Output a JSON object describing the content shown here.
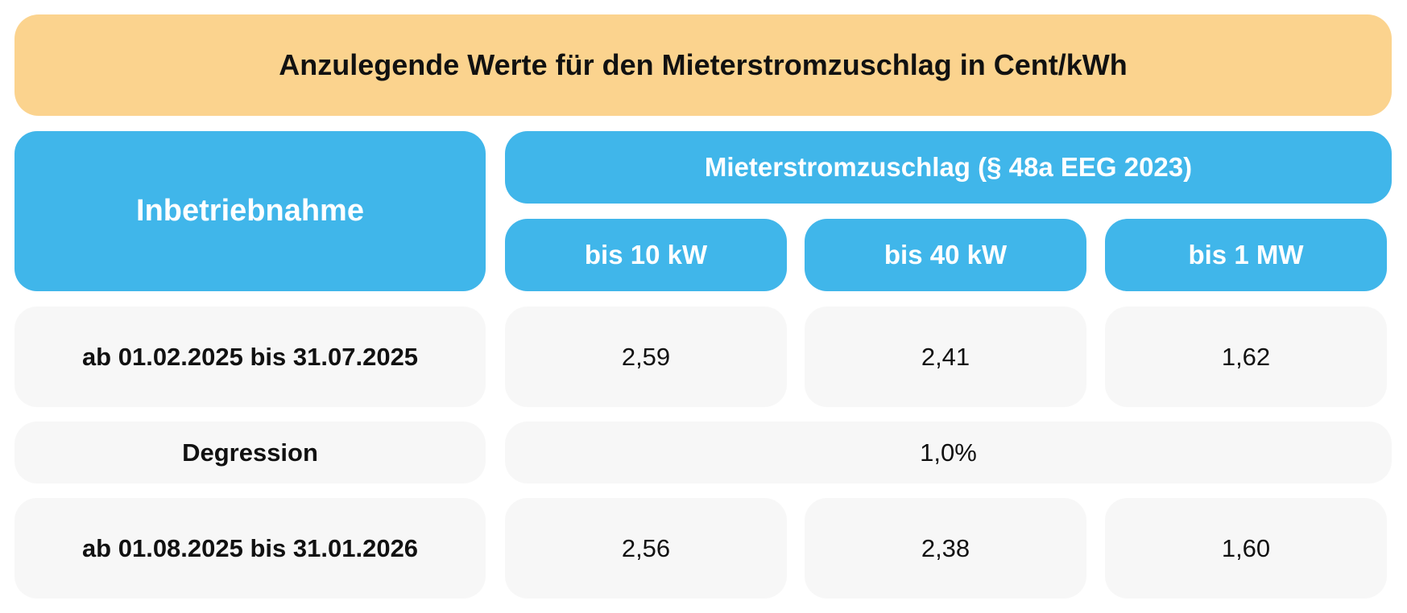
{
  "title": "Anzulegende Werte für den Mieterstromzuschlag in Cent/kWh",
  "header": {
    "first_column": "Inbetriebnahme",
    "group": "Mieterstromzuschlag (§ 48a EEG 2023)",
    "columns": [
      "bis 10 kW",
      "bis 40 kW",
      "bis 1 MW"
    ]
  },
  "rows": [
    {
      "label": "ab 01.02.2025 bis 31.07.2025",
      "values": [
        "2,59",
        "2,41",
        "1,62"
      ]
    },
    {
      "label": "Degression",
      "value": "1,0%"
    },
    {
      "label": "ab 01.08.2025 bis 31.01.2026",
      "values": [
        "2,56",
        "2,38",
        "1,60"
      ]
    }
  ],
  "colors": {
    "title_background": "#fbd38e",
    "header_background": "#40b6ea",
    "cell_background": "#f7f7f7"
  }
}
